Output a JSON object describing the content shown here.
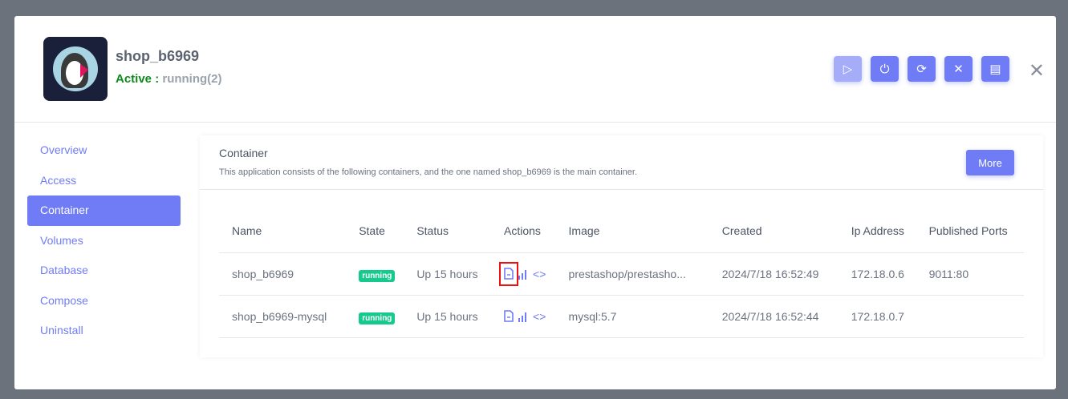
{
  "app": {
    "name": "shop_b6969",
    "status_label": "Active :",
    "status_value": "running(2)"
  },
  "header_buttons": [
    {
      "icon": "play-icon",
      "disabled": true
    },
    {
      "icon": "power-icon"
    },
    {
      "icon": "restart-icon"
    },
    {
      "icon": "tools-icon"
    },
    {
      "icon": "document-icon"
    }
  ],
  "sidebar": {
    "items": [
      {
        "label": "Overview"
      },
      {
        "label": "Access"
      },
      {
        "label": "Container",
        "active": true
      },
      {
        "label": "Volumes"
      },
      {
        "label": "Database"
      },
      {
        "label": "Compose"
      },
      {
        "label": "Uninstall"
      }
    ]
  },
  "container": {
    "title": "Container",
    "description": "This application consists of the following containers, and the one named shop_b6969 is the main container.",
    "more_label": "More",
    "columns": [
      "Name",
      "State",
      "Status",
      "Actions",
      "Image",
      "Created",
      "Ip Address",
      "Published Ports"
    ],
    "rows": [
      {
        "name": "shop_b6969",
        "state": "running",
        "status": "Up 15 hours",
        "image": "prestashop/prestasho...",
        "created": "2024/7/18 16:52:49",
        "ip": "172.18.0.6",
        "ports": "9011:80"
      },
      {
        "name": "shop_b6969-mysql",
        "state": "running",
        "status": "Up 15 hours",
        "image": "mysql:5.7",
        "created": "2024/7/18 16:52:44",
        "ip": "172.18.0.7",
        "ports": ""
      }
    ]
  },
  "colors": {
    "accent": "#6f7cf5",
    "running": "#16c98d",
    "active": "#0c8a1c",
    "highlight": "#ee1111"
  }
}
